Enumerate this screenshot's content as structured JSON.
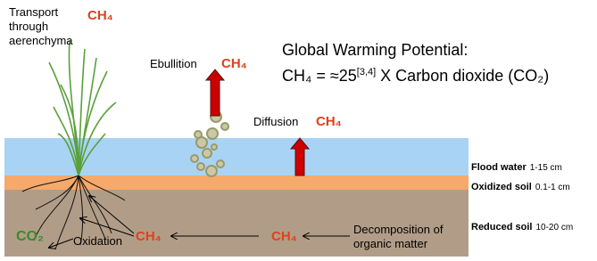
{
  "plant": {
    "label_lines": [
      "Transport",
      "through",
      "aerenchyma"
    ],
    "gas": "CH₄"
  },
  "ebullition": {
    "label": "Ebullition",
    "gas": "CH₄"
  },
  "diffusion": {
    "label": "Diffusion",
    "gas": "CH₄"
  },
  "gwp": {
    "title": "Global Warming Potential:",
    "lhs": "CH₄ = ≈25",
    "citation": "[3,4]",
    "rhs": " X Carbon dioxide (CO₂)"
  },
  "layers": [
    {
      "name": "Flood water",
      "depth": "1-15 cm"
    },
    {
      "name": "Oxidized soil",
      "depth": "0.1-1 cm"
    },
    {
      "name": "Reduced soil",
      "depth": "10-20 cm"
    }
  ],
  "soil": {
    "co2": "CO₂",
    "oxidation": "Oxidation",
    "ch4_left": "CH₄",
    "ch4_right": "CH₄",
    "decomposition_lines": [
      "Decomposition of",
      "organic matter"
    ]
  }
}
